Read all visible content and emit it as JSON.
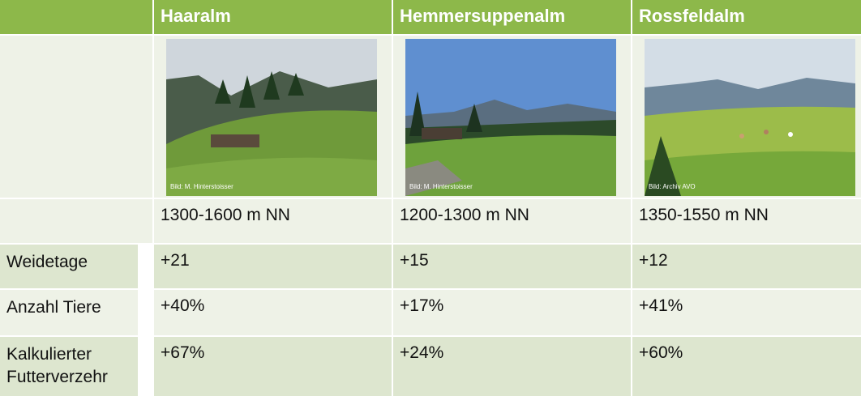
{
  "table": {
    "columns": [
      "Haaralm",
      "Hemmersuppenalm",
      "Rossfeldalm"
    ],
    "image_captions": [
      "Bild: M. Hinterstoisser",
      "Bild: M. Hinterstoisser",
      "Bild: Archiv AVO"
    ],
    "altitude": [
      "1300-1600 m NN",
      "1200-1300 m NN",
      "1350-1550 m NN"
    ],
    "rows": [
      {
        "label": "Weidetage",
        "values": [
          "+21",
          "+15",
          "+12"
        ]
      },
      {
        "label": "Anzahl Tiere",
        "values": [
          "+40%",
          "+17%",
          "+41%"
        ]
      },
      {
        "label": "Kalkulierter Futterverzehr",
        "values": [
          "+67%",
          "+24%",
          "+60%"
        ]
      }
    ]
  }
}
